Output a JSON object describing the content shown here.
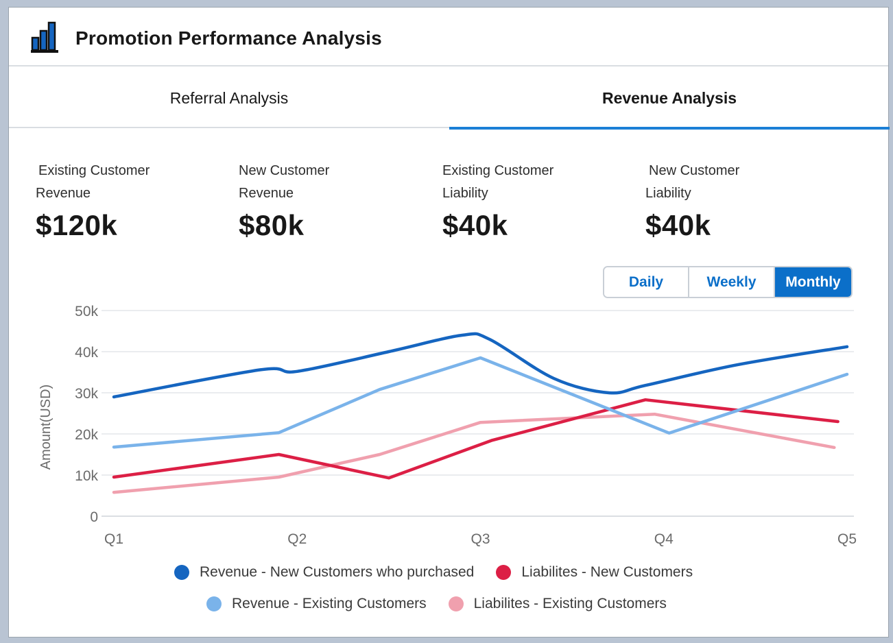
{
  "header": {
    "title": "Promotion Performance Analysis",
    "icon": "bar-chart-icon"
  },
  "tabs": [
    {
      "label": "Referral Analysis",
      "active": false
    },
    {
      "label": "Revenue Analysis",
      "active": true
    }
  ],
  "metrics": [
    {
      "line1": "Existing Customer",
      "line2": "Revenue",
      "value": "$120k"
    },
    {
      "line1": "New Customer",
      "line2": "Revenue",
      "value": "$80k"
    },
    {
      "line1": "Existing Customer",
      "line2": "Liability",
      "value": "$40k"
    },
    {
      "line1": "New Customer",
      "line2": "Liability",
      "value": "$40k"
    }
  ],
  "period_toggle": {
    "options": [
      "Daily",
      "Weekly",
      "Monthly"
    ],
    "selected": "Monthly"
  },
  "colors": {
    "accent": "#0b6fc9",
    "rev_new": "#1565c0",
    "rev_existing": "#7ab3ea",
    "liab_new": "#dc1f45",
    "liab_existing": "#f0a0ae"
  },
  "chart_data": {
    "type": "line",
    "title": "",
    "xlabel": "",
    "ylabel": "Amount(USD)",
    "ylim": [
      0,
      50000
    ],
    "y_ticks": [
      {
        "value": 0,
        "label": "0"
      },
      {
        "value": 10000,
        "label": "10k"
      },
      {
        "value": 20000,
        "label": "20k"
      },
      {
        "value": 30000,
        "label": "30k"
      },
      {
        "value": 40000,
        "label": "40k"
      },
      {
        "value": 50000,
        "label": "50k"
      }
    ],
    "xlim": [
      1,
      5
    ],
    "x_ticks": [
      {
        "value": 1,
        "label": "Q1"
      },
      {
        "value": 2,
        "label": "Q2"
      },
      {
        "value": 3,
        "label": "Q3"
      },
      {
        "value": 4,
        "label": "Q4"
      },
      {
        "value": 5,
        "label": "Q5"
      }
    ],
    "grid": true,
    "legend_position": "bottom",
    "series": [
      {
        "name": "Revenue - New Customers who purchased",
        "color_key": "rev_new",
        "smooth": true,
        "points": [
          [
            1,
            29000
          ],
          [
            1.8,
            35600
          ],
          [
            2.0,
            35200
          ],
          [
            2.5,
            40000
          ],
          [
            2.9,
            44000
          ],
          [
            3.05,
            43000
          ],
          [
            3.4,
            33500
          ],
          [
            3.7,
            30000
          ],
          [
            3.9,
            31800
          ],
          [
            4.4,
            36800
          ],
          [
            5.0,
            41200
          ]
        ]
      },
      {
        "name": "Revenue - Existing Customers",
        "color_key": "rev_existing",
        "smooth": false,
        "points": [
          [
            1,
            16800
          ],
          [
            1.9,
            20300
          ],
          [
            2.45,
            30800
          ],
          [
            3.0,
            38500
          ],
          [
            4.03,
            20200
          ],
          [
            5.0,
            34500
          ]
        ]
      },
      {
        "name": "Liabilites - New Customers",
        "color_key": "liab_new",
        "smooth": false,
        "points": [
          [
            1,
            9500
          ],
          [
            1.9,
            15000
          ],
          [
            2.5,
            9300
          ],
          [
            3.06,
            18400
          ],
          [
            3.9,
            28300
          ],
          [
            4.95,
            23000
          ]
        ]
      },
      {
        "name": "Liabilites - Existing Customers",
        "color_key": "liab_existing",
        "smooth": false,
        "points": [
          [
            1,
            5800
          ],
          [
            1.9,
            9500
          ],
          [
            2.45,
            15000
          ],
          [
            3.0,
            22800
          ],
          [
            3.95,
            24800
          ],
          [
            4.93,
            16700
          ]
        ]
      }
    ]
  },
  "legend": {
    "row1": [
      {
        "label": "Revenue - New Customers who purchased",
        "color_key": "rev_new"
      },
      {
        "label": "Liabilites - New Customers",
        "color_key": "liab_new"
      }
    ],
    "row2": [
      {
        "label": "Revenue - Existing Customers",
        "color_key": "rev_existing"
      },
      {
        "label": "Liabilites - Existing Customers",
        "color_key": "liab_existing"
      }
    ]
  }
}
